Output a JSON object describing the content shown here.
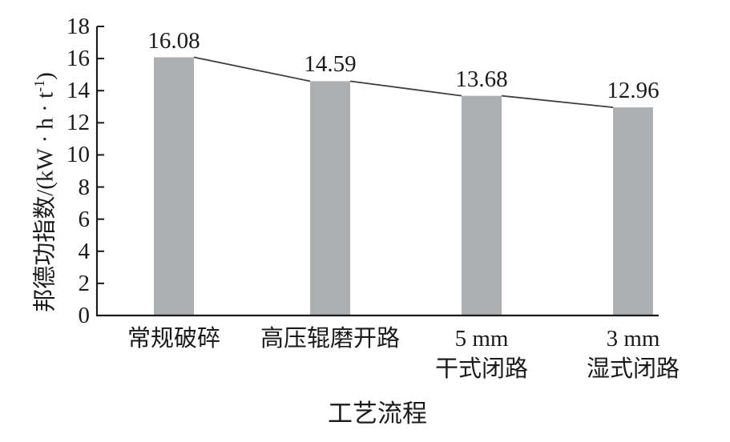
{
  "figure": {
    "background": "#ffffff",
    "x_axis_title": "工艺流程",
    "y_axis_title_pre": "邦德功指数/(kW · h · t",
    "y_axis_title_sup": "-1",
    "y_axis_title_post": ")"
  },
  "chart_data": {
    "type": "bar",
    "categories": [
      "常规破碎",
      "高压辊磨开路",
      "5 mm\n干式闭路",
      "3 mm\n湿式闭路"
    ],
    "values": [
      16.08,
      14.59,
      13.68,
      12.96
    ],
    "value_labels": [
      "16.08",
      "14.59",
      "13.68",
      "12.96"
    ],
    "xlabel": "工艺流程",
    "ylabel": "邦德功指数/(kW·h·t⁻¹)",
    "ylim": [
      0,
      18
    ],
    "yticks": [
      0,
      2,
      4,
      6,
      8,
      10,
      12,
      14,
      16,
      18
    ],
    "grid": false,
    "connector_line_between_bar_tops": true,
    "colors": {
      "bar": "#aeafb1",
      "connector_line": "#3f3f3f",
      "axis": "#1a1a1a",
      "text": "#1b1b1b"
    }
  }
}
